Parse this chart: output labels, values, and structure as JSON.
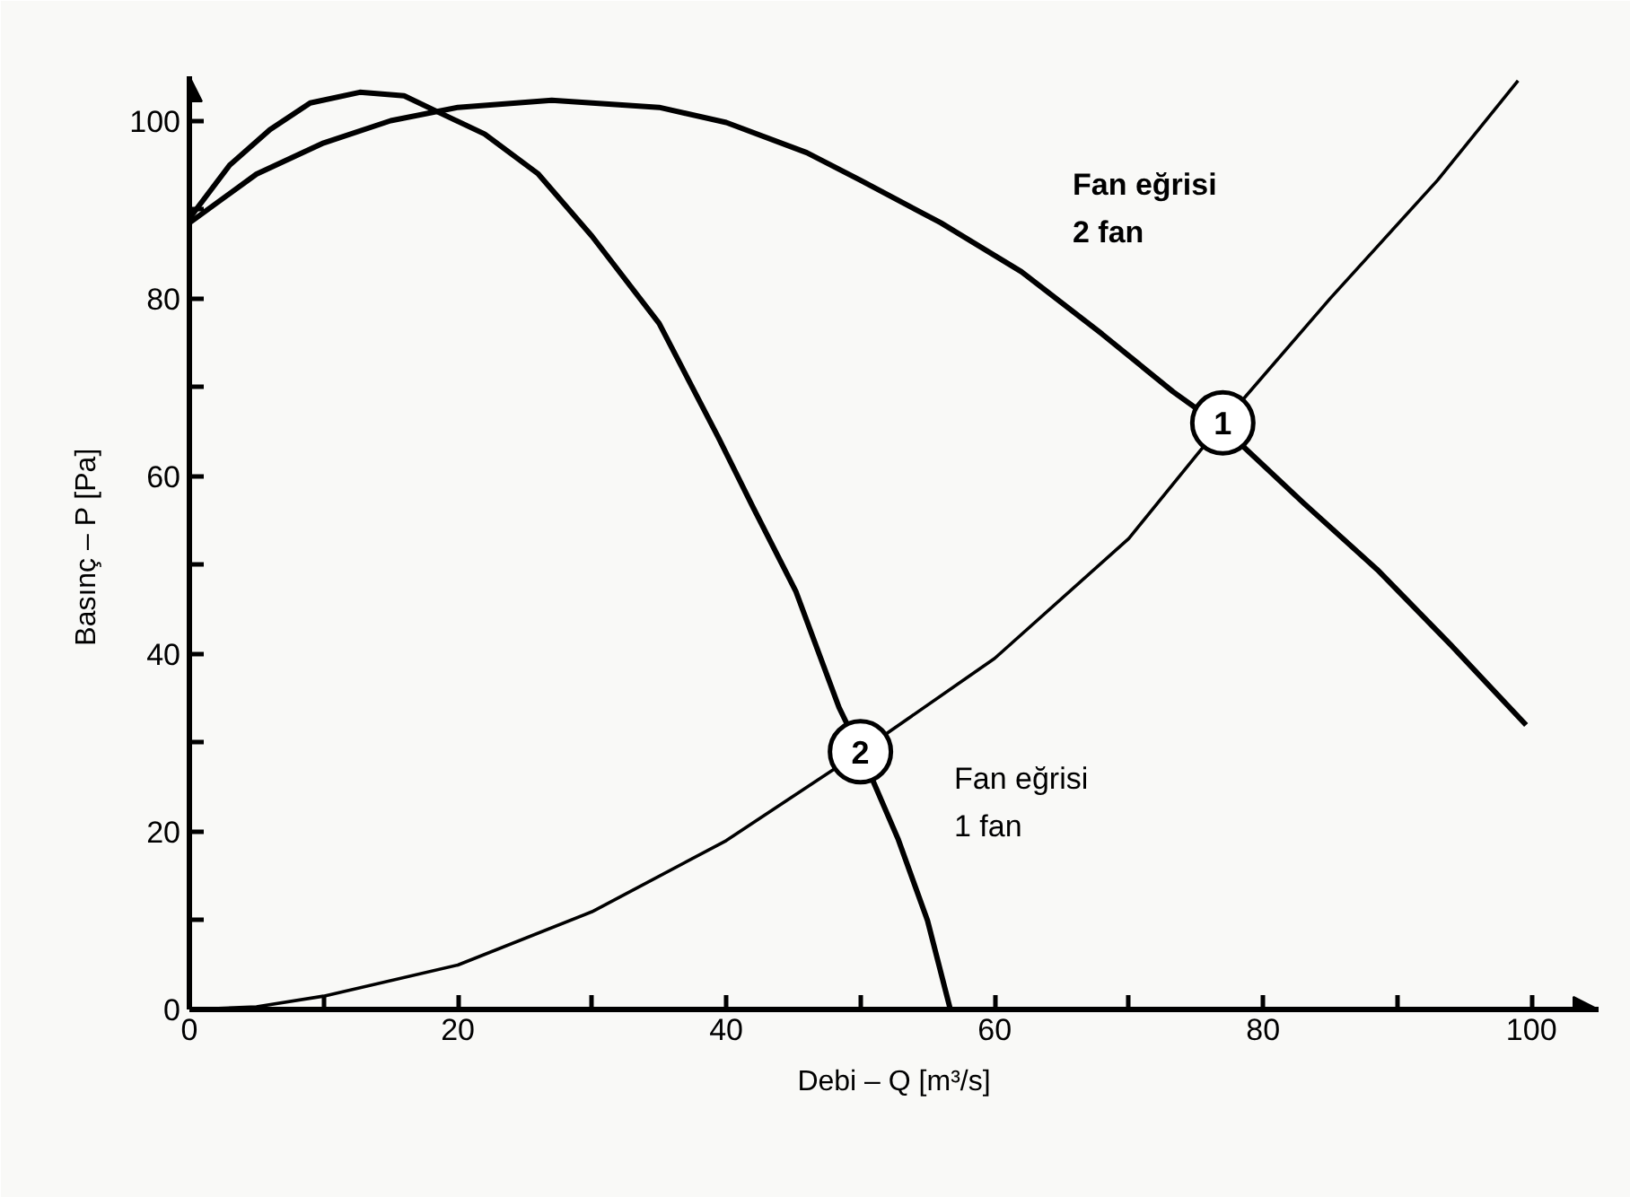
{
  "chart_data": {
    "type": "line",
    "xlabel": "Debi – Q [m³/s]",
    "ylabel": "Basınç – P  [Pa]",
    "xlim": [
      0,
      105
    ],
    "ylim": [
      0,
      105
    ],
    "xticks": [
      0,
      {
        "value": 10,
        "label": null
      },
      20,
      {
        "value": 30,
        "label": null
      },
      40,
      {
        "value": 50,
        "label": null
      },
      60,
      {
        "value": 70,
        "label": null
      },
      80,
      {
        "value": 90,
        "label": null
      },
      100
    ],
    "yticks": [
      0,
      {
        "value": 10,
        "label": null
      },
      20,
      {
        "value": 30,
        "label": null
      },
      40,
      {
        "value": 50,
        "label": null
      },
      60,
      {
        "value": 70,
        "label": null
      },
      80,
      {
        "value": 90,
        "label": null
      },
      100
    ],
    "grid": false,
    "line_style": "solid",
    "series": [
      {
        "color": "#000000",
        "x": [
          0,
          3,
          6,
          9,
          12.7,
          16,
          18.5,
          22,
          26,
          30,
          35,
          39.4,
          42,
          45.2,
          48.4,
          50,
          52.8,
          55,
          56.7
        ],
        "values": [
          89,
          95,
          99,
          102,
          103.2,
          102.8,
          101,
          98.5,
          94,
          87,
          77.2,
          64.4,
          56.5,
          47,
          34,
          29,
          19.2,
          10,
          0
        ]
      },
      {
        "color": "#000000",
        "x": [
          0,
          5,
          10,
          15,
          20,
          27,
          35,
          40,
          46,
          50,
          56,
          62,
          68,
          73.3,
          77,
          83,
          88.5,
          94,
          99.6
        ],
        "values": [
          88.5,
          94,
          97.5,
          100,
          101.5,
          102.3,
          101.5,
          99.8,
          96.4,
          93.3,
          88.5,
          83,
          76,
          69.5,
          65.5,
          57,
          49.5,
          41,
          32
        ]
      },
      {
        "color": "#000000",
        "x": [
          0,
          5,
          10,
          20,
          30,
          40,
          50,
          60,
          70,
          77,
          85,
          93,
          99
        ],
        "values": [
          0,
          0.3,
          1.5,
          5,
          11,
          19,
          29,
          39.5,
          53,
          66,
          80,
          93.3,
          104.5
        ]
      },
      {
        "type": "scatter",
        "color": "#000000",
        "x": [
          77,
          50
        ],
        "values": [
          66,
          29
        ]
      }
    ],
    "annotations": [
      "Fan eğrisi\n2 fan",
      "Fan eğrisi\n1 fan",
      {
        "text": "1",
        "x": 77,
        "y": 66
      },
      {
        "text": "2",
        "x": 50,
        "y": 29
      }
    ]
  }
}
